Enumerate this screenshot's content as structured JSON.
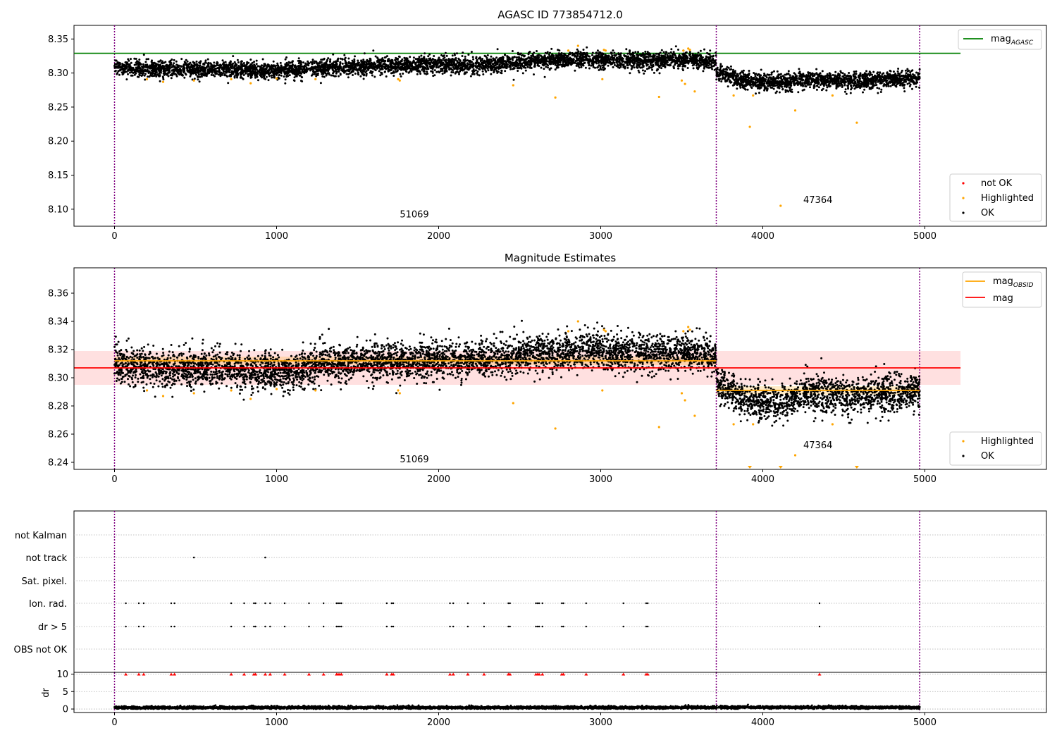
{
  "figure": {
    "background": "#ffffff",
    "obsid_boundaries": [
      0,
      3713,
      4968
    ],
    "colors": {
      "ok": "#000000",
      "highlighted": "#ffa500",
      "not_ok": "#ff0000",
      "agasc_line": "#008000",
      "obsid_mag": "#ffa500",
      "mag_line": "#ff0000",
      "boundary": "#800080"
    }
  },
  "chart_data": [
    {
      "id": "top",
      "type": "scatter",
      "title": "AGASC ID 773854712.0",
      "xlim": [
        -250,
        5750
      ],
      "ylim": [
        8.075,
        8.37
      ],
      "xticks": [
        "0",
        "1000",
        "2000",
        "3000",
        "4000",
        "5000"
      ],
      "yticks": [
        "8.10",
        "8.15",
        "8.20",
        "8.25",
        "8.30",
        "8.35"
      ],
      "legend_main": {
        "label": "mag",
        "sub": "AGASC",
        "placement": "upper right"
      },
      "legend_points": {
        "placement": "lower right",
        "entries": [
          "not OK",
          "Highlighted",
          "OK"
        ]
      },
      "annotations": [
        {
          "text": "51069",
          "x": 1850,
          "y": 8.088
        },
        {
          "text": "47364",
          "x": 4340,
          "y": 8.109
        }
      ],
      "agasc_mag": 8.329,
      "highlighted": [
        [
          200,
          8.291
        ],
        [
          300,
          8.287
        ],
        [
          490,
          8.289
        ],
        [
          720,
          8.291
        ],
        [
          840,
          8.285
        ],
        [
          1000,
          8.292
        ],
        [
          1240,
          8.291
        ],
        [
          1750,
          8.291
        ],
        [
          1760,
          8.289
        ],
        [
          2460,
          8.282
        ],
        [
          2720,
          8.264
        ],
        [
          2800,
          8.333
        ],
        [
          2860,
          8.34
        ],
        [
          3010,
          8.291
        ],
        [
          3020,
          8.334
        ],
        [
          3030,
          8.333
        ],
        [
          3360,
          8.265
        ],
        [
          3500,
          8.289
        ],
        [
          3510,
          8.333
        ],
        [
          3520,
          8.284
        ],
        [
          3540,
          8.336
        ],
        [
          3550,
          8.334
        ],
        [
          3580,
          8.273
        ],
        [
          3820,
          8.267
        ],
        [
          3920,
          8.221
        ],
        [
          3940,
          8.267
        ],
        [
          4110,
          8.105
        ],
        [
          4200,
          8.245
        ],
        [
          4430,
          8.267
        ],
        [
          4580,
          8.227
        ]
      ],
      "segments": [
        {
          "x0": 0,
          "x1": 3713,
          "knots": [
            [
              0,
              8.308
            ],
            [
              300,
              8.305
            ],
            [
              700,
              8.306
            ],
            [
              1000,
              8.303
            ],
            [
              1300,
              8.309
            ],
            [
              1700,
              8.311
            ],
            [
              2000,
              8.312
            ],
            [
              2300,
              8.312
            ],
            [
              2600,
              8.318
            ],
            [
              2900,
              8.32
            ],
            [
              3200,
              8.318
            ],
            [
              3500,
              8.32
            ],
            [
              3713,
              8.317
            ]
          ],
          "spread": 0.006
        },
        {
          "x0": 3713,
          "x1": 4968,
          "knots": [
            [
              3713,
              8.3
            ],
            [
              3900,
              8.288
            ],
            [
              4100,
              8.286
            ],
            [
              4300,
              8.292
            ],
            [
              4500,
              8.288
            ],
            [
              4700,
              8.289
            ],
            [
              4968,
              8.292
            ]
          ],
          "spread": 0.006
        }
      ]
    },
    {
      "id": "middle",
      "type": "scatter",
      "title": "Magnitude Estimates",
      "xlim": [
        -250,
        5750
      ],
      "ylim": [
        8.235,
        8.378
      ],
      "xticks": [
        "0",
        "1000",
        "2000",
        "3000",
        "4000",
        "5000"
      ],
      "yticks": [
        "8.24",
        "8.26",
        "8.28",
        "8.30",
        "8.32",
        "8.34",
        "8.36"
      ],
      "legend_main": {
        "placement": "upper right",
        "entries": [
          {
            "label": "mag",
            "sub": "OBSID"
          },
          {
            "label": "mag",
            "sub": ""
          }
        ]
      },
      "legend_points": {
        "placement": "lower right",
        "entries": [
          "Highlighted",
          "OK"
        ]
      },
      "annotations": [
        {
          "text": "51069",
          "x": 1850,
          "y": 8.24
        },
        {
          "text": "47364",
          "x": 4340,
          "y": 8.25
        }
      ],
      "mag": {
        "value": 8.307,
        "band": [
          8.295,
          8.319
        ],
        "x": [
          -250,
          5220
        ]
      },
      "obsid_mag": [
        {
          "x": [
            0,
            3713
          ],
          "value": 8.312,
          "band": [
            8.309,
            8.315
          ]
        },
        {
          "x": [
            3713,
            4968
          ],
          "value": 8.291,
          "band": [
            8.288,
            8.294
          ]
        }
      ],
      "highlighted": [
        [
          200,
          8.291
        ],
        [
          300,
          8.287
        ],
        [
          490,
          8.289
        ],
        [
          720,
          8.291
        ],
        [
          840,
          8.285
        ],
        [
          1000,
          8.292
        ],
        [
          1240,
          8.291
        ],
        [
          1750,
          8.291
        ],
        [
          1760,
          8.289
        ],
        [
          2460,
          8.282
        ],
        [
          2720,
          8.264
        ],
        [
          2800,
          8.333
        ],
        [
          2860,
          8.34
        ],
        [
          3010,
          8.291
        ],
        [
          3020,
          8.334
        ],
        [
          3030,
          8.333
        ],
        [
          3360,
          8.265
        ],
        [
          3500,
          8.289
        ],
        [
          3510,
          8.333
        ],
        [
          3520,
          8.284
        ],
        [
          3540,
          8.336
        ],
        [
          3550,
          8.334
        ],
        [
          3580,
          8.273
        ],
        [
          3820,
          8.267
        ],
        [
          3940,
          8.267
        ],
        [
          4200,
          8.245
        ],
        [
          4430,
          8.267
        ]
      ],
      "highlighted_below": [
        3920,
        4110,
        4580
      ],
      "segments": [
        {
          "x0": 0,
          "x1": 3713,
          "knots": [
            [
              0,
              8.311
            ],
            [
              300,
              8.306
            ],
            [
              700,
              8.307
            ],
            [
              1000,
              8.303
            ],
            [
              1300,
              8.31
            ],
            [
              1700,
              8.312
            ],
            [
              2000,
              8.313
            ],
            [
              2300,
              8.313
            ],
            [
              2600,
              8.317
            ],
            [
              2900,
              8.319
            ],
            [
              3200,
              8.317
            ],
            [
              3500,
              8.318
            ],
            [
              3713,
              8.316
            ]
          ],
          "spread": 0.0065
        },
        {
          "x0": 3713,
          "x1": 4968,
          "knots": [
            [
              3713,
              8.296
            ],
            [
              3900,
              8.284
            ],
            [
              4100,
              8.281
            ],
            [
              4300,
              8.29
            ],
            [
              4500,
              8.286
            ],
            [
              4700,
              8.288
            ],
            [
              4968,
              8.291
            ]
          ],
          "spread": 0.0065
        }
      ]
    },
    {
      "id": "flags",
      "type": "scatter",
      "xlim": [
        -250,
        5750
      ],
      "categories": [
        "not Kalman",
        "not track",
        "Sat. pixel.",
        "Ion. rad.",
        "dr > 5",
        "OBS not OK"
      ],
      "not_track_x": [
        490,
        930
      ],
      "flag_x": [
        70,
        150,
        180,
        350,
        370,
        720,
        800,
        860,
        870,
        930,
        960,
        1050,
        1200,
        1290,
        1370,
        1380,
        1390,
        1400,
        1680,
        1710,
        1720,
        2070,
        2090,
        2180,
        2280,
        2430,
        2440,
        2600,
        2610,
        2620,
        2640,
        2760,
        2770,
        2910,
        3140,
        3280,
        3290,
        4350
      ]
    },
    {
      "id": "dr",
      "type": "scatter",
      "ylabel": "dr",
      "xlim": [
        -250,
        5750
      ],
      "ylim": [
        -1,
        10.5
      ],
      "xticks": [
        "0",
        "1000",
        "2000",
        "3000",
        "4000",
        "5000"
      ],
      "yticks": [
        "0",
        "5",
        "10"
      ],
      "dr_max": 10,
      "segments": [
        {
          "x0": 0,
          "x1": 4968,
          "knots": [
            [
              0,
              0.35
            ],
            [
              1000,
              0.4
            ],
            [
              2000,
              0.38
            ],
            [
              3000,
              0.36
            ],
            [
              4000,
              0.5
            ],
            [
              4968,
              0.4
            ]
          ],
          "spread": 0.22
        }
      ]
    }
  ]
}
